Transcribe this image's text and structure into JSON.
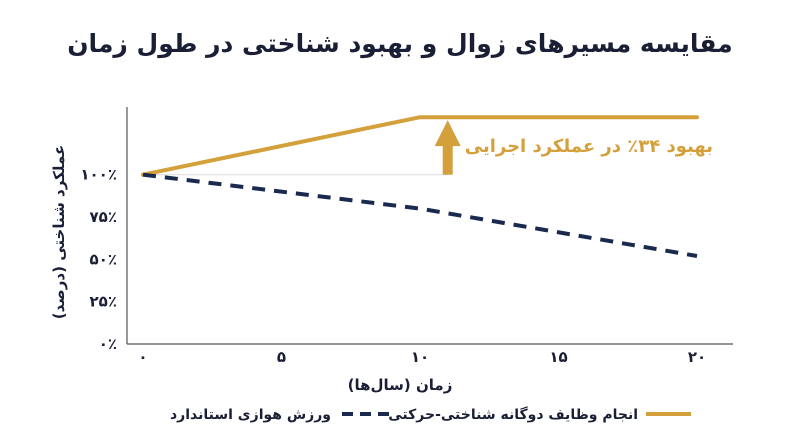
{
  "chart_data": {
    "type": "line",
    "title": "مقایسه مسیرهای زوال و بهبود شناختی در طول زمان",
    "xlabel": "زمان (سال‌ها)",
    "ylabel": "عملکرد شناختی (درصد)",
    "xlim": [
      0,
      21
    ],
    "ylim": [
      0,
      140
    ],
    "x_ticks": [
      0,
      5,
      10,
      15,
      20
    ],
    "x_tick_labels": [
      "۰",
      "۵",
      "۱۰",
      "۱۵",
      "۲۰"
    ],
    "y_ticks": [
      0,
      25,
      50,
      75,
      100
    ],
    "y_tick_labels": [
      "۰٪",
      "۲۵٪",
      "۵۰٪",
      "۷۵٪",
      "۱۰۰٪"
    ],
    "grid": false,
    "legend_position": "bottom",
    "series": [
      {
        "name": "انجام وظایف دوگانه شناختی-حرکتی",
        "color": "#d4a03c",
        "style": "solid",
        "points": [
          [
            0,
            100
          ],
          [
            10,
            134
          ],
          [
            20,
            134
          ]
        ]
      },
      {
        "name": "ورزش هوازی استاندارد",
        "color": "#1a2a4e",
        "style": "dashed",
        "points": [
          [
            0,
            100
          ],
          [
            10,
            80
          ],
          [
            20,
            52
          ]
        ]
      }
    ],
    "annotation": {
      "text": "بهبود ۳۴٪ در عملکرد اجرایی",
      "arrow_x": 11,
      "arrow_from": 100,
      "arrow_to": 134,
      "color": "#d4a03c"
    },
    "reference_line": {
      "y": 100,
      "x_from": 0,
      "x_to": 11,
      "color": "#dcdcdc"
    }
  }
}
